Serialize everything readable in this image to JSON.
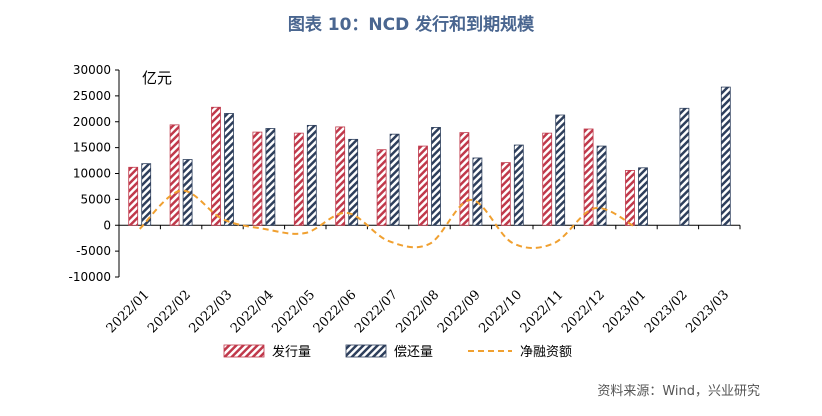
{
  "chart_data": {
    "type": "bar",
    "title": "图表 10：NCD 发行和到期规模",
    "unit_label": "亿元",
    "categories": [
      "2022/01",
      "2022/02",
      "2022/03",
      "2022/04",
      "2022/05",
      "2022/06",
      "2022/07",
      "2022/08",
      "2022/09",
      "2022/10",
      "2022/11",
      "2022/12",
      "2023/01",
      "2023/02",
      "2023/03"
    ],
    "ylim": [
      -10000,
      30000
    ],
    "yticks": [
      -10000,
      -5000,
      0,
      5000,
      10000,
      15000,
      20000,
      25000,
      30000
    ],
    "series": [
      {
        "name": "发行量",
        "type": "bar",
        "pattern": "red-hatch",
        "values": [
          11200,
          19400,
          22800,
          18000,
          17800,
          19000,
          14600,
          15300,
          17900,
          12100,
          17800,
          18600,
          10600,
          null,
          null
        ]
      },
      {
        "name": "偿还量",
        "type": "bar",
        "pattern": "navy-hatch",
        "values": [
          11900,
          12700,
          21600,
          18700,
          19300,
          16600,
          17600,
          18900,
          13000,
          15500,
          21300,
          15300,
          11100,
          22600,
          26700
        ]
      },
      {
        "name": "净融资额",
        "type": "line",
        "style": "dashed",
        "values": [
          -700,
          6700,
          1200,
          -700,
          -1500,
          2400,
          -3000,
          -3600,
          4900,
          -3400,
          -3500,
          3300,
          -500,
          null,
          null
        ]
      }
    ],
    "legend_position": "bottom",
    "grid": false,
    "colors": {
      "issuance": "#c0394b",
      "repayment": "#2e3f5c",
      "net": "#f0a030",
      "title": "#4a6690"
    }
  },
  "source": "资料来源：Wind，兴业研究"
}
